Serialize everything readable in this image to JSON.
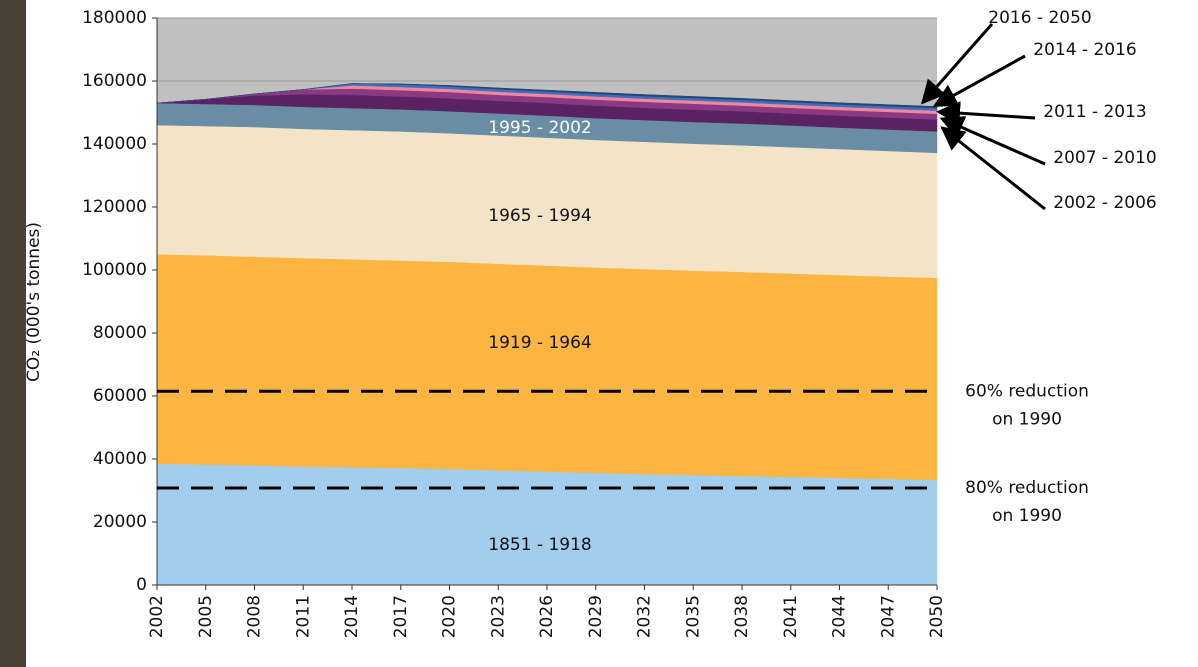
{
  "chart_data": {
    "type": "stacked-area",
    "y_label": "CO₂ (000's tonnes)",
    "x": [
      2002,
      2005,
      2008,
      2011,
      2014,
      2017,
      2020,
      2023,
      2026,
      2029,
      2032,
      2035,
      2038,
      2041,
      2044,
      2047,
      2050
    ],
    "xlim": [
      2002,
      2050
    ],
    "xticks": [
      2002,
      2005,
      2008,
      2011,
      2014,
      2017,
      2020,
      2023,
      2026,
      2029,
      2032,
      2035,
      2038,
      2041,
      2044,
      2047,
      2050
    ],
    "ylim": [
      0,
      180000
    ],
    "yticks": [
      0,
      20000,
      40000,
      60000,
      80000,
      100000,
      120000,
      140000,
      160000,
      180000
    ],
    "grid": true,
    "series": [
      {
        "name": "1851 - 1918",
        "color": "#a3cdec",
        "values": [
          38500,
          38300,
          38000,
          37600,
          37400,
          37200,
          36800,
          36400,
          36000,
          35600,
          35200,
          34900,
          34600,
          34300,
          34000,
          33700,
          33300
        ]
      },
      {
        "name": "1919 - 1964",
        "color": "#fbb540",
        "values": [
          66500,
          66400,
          66200,
          66200,
          66000,
          65800,
          65800,
          65600,
          65400,
          65200,
          65100,
          64900,
          64800,
          64600,
          64400,
          64200,
          64200
        ]
      },
      {
        "name": "1965 - 1994",
        "color": "#f3e4c8",
        "values": [
          41000,
          41000,
          41200,
          41000,
          41000,
          41000,
          40800,
          40700,
          40600,
          40500,
          40400,
          40300,
          40200,
          40100,
          40000,
          39900,
          39700
        ]
      },
      {
        "name": "1995 - 2002",
        "color": "#6a8da6",
        "values": [
          7000,
          7000,
          7000,
          7000,
          7000,
          7000,
          7000,
          7000,
          7000,
          6900,
          6900,
          6900,
          6900,
          6900,
          6800,
          6800,
          6800
        ]
      },
      {
        "name": "2002 - 2006",
        "color": "#5a2262",
        "values": [
          0,
          1500,
          3000,
          4000,
          4200,
          4100,
          4100,
          4000,
          4000,
          4000,
          3900,
          3900,
          3900,
          3800,
          3800,
          3800,
          3800
        ]
      },
      {
        "name": "2007 - 2010",
        "color": "#8a3a82",
        "values": [
          0,
          0,
          500,
          1500,
          2000,
          2000,
          2000,
          1900,
          1900,
          1900,
          1900,
          1900,
          1800,
          1800,
          1800,
          1800,
          1800
        ]
      },
      {
        "name": "2011 - 2013",
        "color": "#f2879a",
        "values": [
          0,
          0,
          0,
          0,
          1000,
          1000,
          1000,
          1000,
          1000,
          1000,
          1000,
          1000,
          1000,
          1000,
          1000,
          1000,
          1000
        ]
      },
      {
        "name": "2014 - 2016",
        "color": "#3c6fc4",
        "values": [
          0,
          0,
          0,
          0,
          600,
          800,
          800,
          800,
          800,
          800,
          800,
          800,
          800,
          800,
          800,
          800,
          800
        ]
      },
      {
        "name": "2016 - 2050",
        "color": "#27466f",
        "values": [
          0,
          0,
          0,
          0,
          0,
          200,
          300,
          400,
          400,
          500,
          500,
          500,
          500,
          500,
          500,
          500,
          500
        ]
      }
    ],
    "reference_lines": [
      {
        "value": 61500,
        "label": [
          "60% reduction",
          "on 1990"
        ]
      },
      {
        "value": 30800,
        "label": [
          "80% reduction",
          "on 1990"
        ]
      }
    ]
  }
}
